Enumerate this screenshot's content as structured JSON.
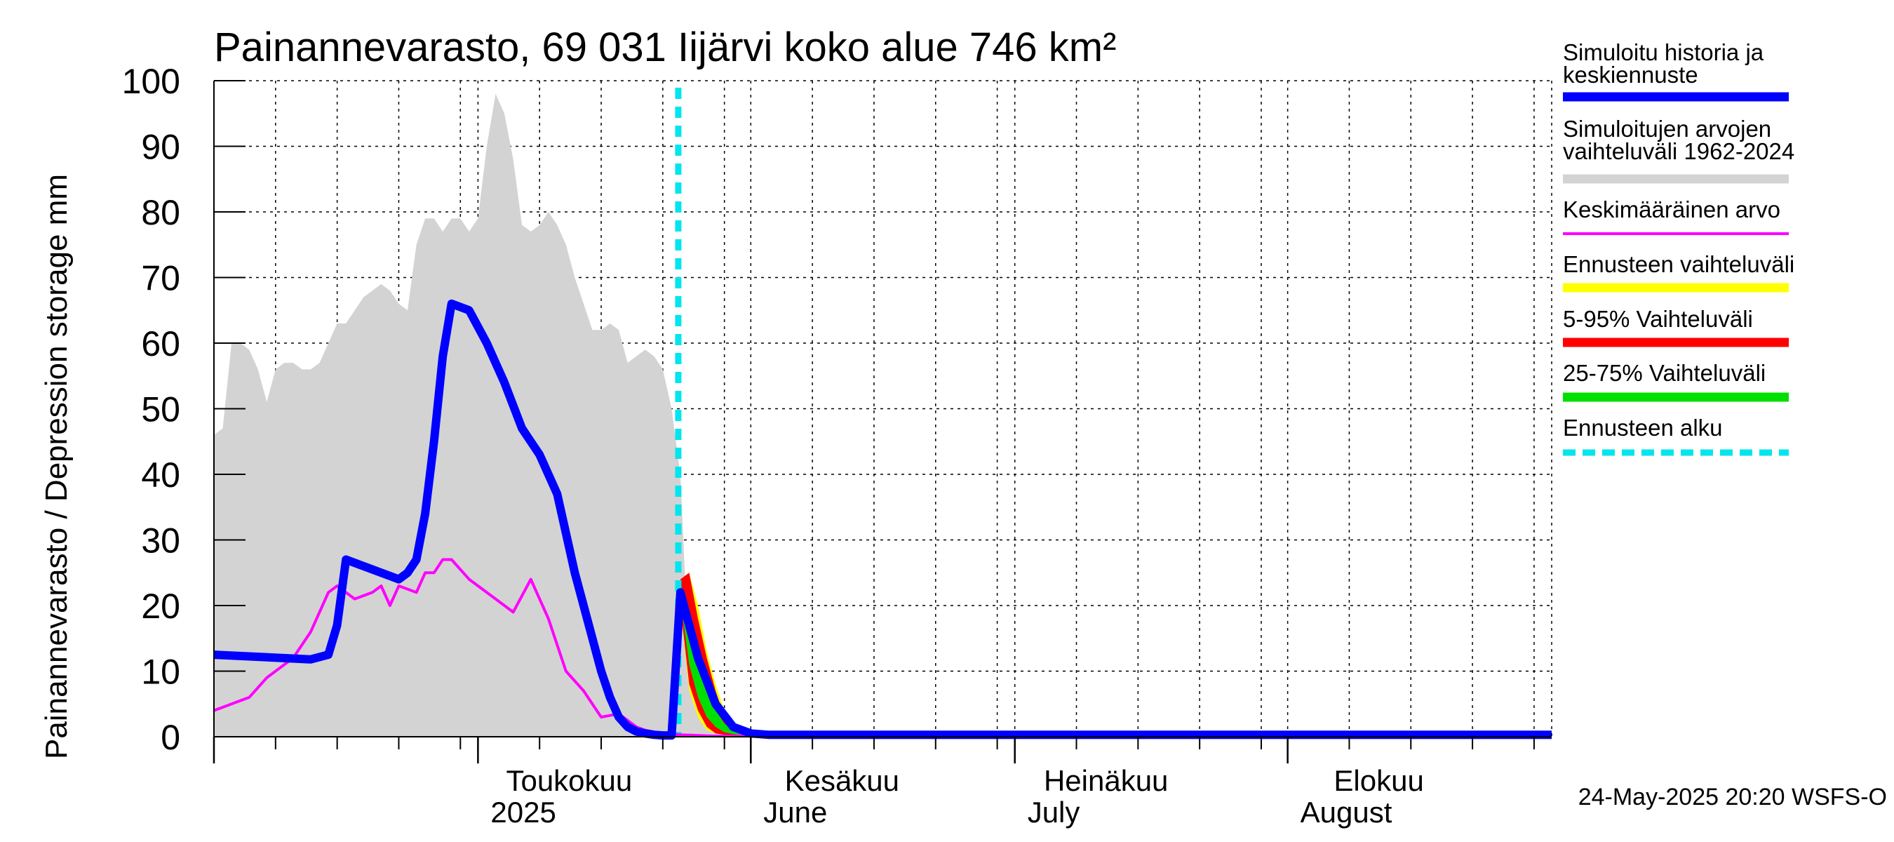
{
  "chart_data": {
    "type": "area",
    "title": "Painannevarasto, 69 031 Iijärvi koko alue 746 km²",
    "ylabel": "Painannevarasto / Depression storage    mm",
    "yunit": "mm",
    "ylim": [
      0,
      100
    ],
    "yticks": [
      0,
      10,
      20,
      30,
      40,
      50,
      60,
      70,
      80,
      90,
      100
    ],
    "xlim": [
      "2025-04-01",
      "2025-08-31"
    ],
    "grid": true,
    "x_tick_labels": [
      {
        "date": "2025-05-01",
        "line1": "Toukokuu",
        "line2": "2025"
      },
      {
        "date": "2025-06-01",
        "line1": "Kesäkuu",
        "line2": "June"
      },
      {
        "date": "2025-07-01",
        "line1": "Heinäkuu",
        "line2": "July"
      },
      {
        "date": "2025-08-01",
        "line1": "Elokuu",
        "line2": "August"
      }
    ],
    "forecast_start": "2025-05-24",
    "series": [
      {
        "name": "Simuloitujen arvojen vaihteluväli 1962-2024",
        "color": "#d3d3d3",
        "kind": "band",
        "x": [
          "2025-04-01",
          "2025-04-02",
          "2025-04-03",
          "2025-04-04",
          "2025-04-05",
          "2025-04-06",
          "2025-04-07",
          "2025-04-08",
          "2025-04-09",
          "2025-04-10",
          "2025-04-11",
          "2025-04-12",
          "2025-04-13",
          "2025-04-14",
          "2025-04-15",
          "2025-04-16",
          "2025-04-17",
          "2025-04-18",
          "2025-04-19",
          "2025-04-20",
          "2025-04-21",
          "2025-04-22",
          "2025-04-23",
          "2025-04-24",
          "2025-04-25",
          "2025-04-26",
          "2025-04-27",
          "2025-04-28",
          "2025-04-29",
          "2025-04-30",
          "2025-05-01",
          "2025-05-02",
          "2025-05-03",
          "2025-05-04",
          "2025-05-05",
          "2025-05-06",
          "2025-05-07",
          "2025-05-08",
          "2025-05-09",
          "2025-05-10",
          "2025-05-11",
          "2025-05-12",
          "2025-05-13",
          "2025-05-14",
          "2025-05-15",
          "2025-05-16",
          "2025-05-17",
          "2025-05-18",
          "2025-05-19",
          "2025-05-20",
          "2025-05-21",
          "2025-05-22",
          "2025-05-23",
          "2025-05-24",
          "2025-05-25",
          "2025-05-26",
          "2025-05-27",
          "2025-05-28",
          "2025-05-29",
          "2025-05-30",
          "2025-05-31",
          "2025-06-01",
          "2025-06-02",
          "2025-06-03",
          "2025-06-04",
          "2025-06-05",
          "2025-06-06",
          "2025-06-07",
          "2025-06-08",
          "2025-06-09",
          "2025-06-10",
          "2025-06-11",
          "2025-06-12",
          "2025-06-13",
          "2025-06-14",
          "2025-06-15",
          "2025-06-16",
          "2025-06-17",
          "2025-06-18",
          "2025-06-19",
          "2025-06-20",
          "2025-06-21"
        ],
        "upper": [
          46,
          47,
          60,
          60,
          59,
          56,
          51,
          56,
          57,
          57,
          56,
          56,
          57,
          60,
          63,
          63,
          65,
          67,
          68,
          69,
          68,
          66,
          65,
          75,
          79,
          79,
          77,
          79,
          79,
          77,
          79,
          90,
          98,
          95,
          88,
          78,
          77,
          78,
          80,
          78,
          75,
          70,
          66,
          62,
          62,
          63,
          62,
          57,
          58,
          59,
          58,
          56,
          50,
          40,
          10,
          6,
          5,
          4,
          3,
          2,
          1,
          0.5,
          0.5,
          0.5,
          0.5,
          0.5,
          0.5,
          0.5,
          0.5,
          0.5,
          0.5,
          0.5,
          0.5,
          0.5,
          0.5,
          0.5,
          0.5,
          0.5,
          0.5,
          0.5,
          0.5,
          0.5
        ],
        "lower": [
          0,
          0,
          0,
          0,
          0,
          0,
          0,
          0,
          0,
          0,
          0,
          0,
          0,
          0,
          0,
          0,
          0,
          0,
          0,
          0,
          0,
          0,
          0,
          0,
          0,
          0,
          0,
          0,
          0,
          0,
          0,
          0,
          0,
          0,
          0,
          0,
          0,
          0,
          0,
          0,
          0,
          0,
          0,
          0,
          0,
          0,
          0,
          0,
          0,
          0,
          0,
          0,
          0,
          0,
          0,
          0,
          0,
          0,
          0,
          0,
          0,
          0,
          0,
          0,
          0,
          0,
          0,
          0,
          0,
          0,
          0,
          0,
          0,
          0,
          0,
          0,
          0,
          0,
          0,
          0,
          0,
          0
        ]
      },
      {
        "name": "Ennusteen vaihteluväli",
        "color": "#ffff00",
        "kind": "band",
        "x": [
          "2025-05-24",
          "2025-05-25",
          "2025-05-26",
          "2025-05-27",
          "2025-05-28",
          "2025-05-29",
          "2025-05-30",
          "2025-05-31",
          "2025-06-01",
          "2025-06-02"
        ],
        "upper": [
          24,
          25,
          20,
          13,
          8,
          4,
          2,
          1,
          0.6,
          0.4
        ],
        "lower": [
          20,
          7,
          3,
          1,
          0.5,
          0.3,
          0.3,
          0.3,
          0.3,
          0.3
        ]
      },
      {
        "name": "5-95% Vaihteluväli",
        "color": "#ff0000",
        "kind": "band",
        "x": [
          "2025-05-24",
          "2025-05-25",
          "2025-05-26",
          "2025-05-27",
          "2025-05-28",
          "2025-05-29",
          "2025-05-30",
          "2025-05-31",
          "2025-06-01",
          "2025-06-02"
        ],
        "upper": [
          24,
          25,
          18,
          12,
          7,
          3,
          1.5,
          0.8,
          0.5,
          0.4
        ],
        "lower": [
          20,
          8,
          4,
          1.5,
          0.5,
          0.3,
          0.3,
          0.3,
          0.3,
          0.3
        ]
      },
      {
        "name": "25-75% Vaihteluväli",
        "color": "#00e000",
        "kind": "band",
        "x": [
          "2025-05-24",
          "2025-05-25",
          "2025-05-26",
          "2025-05-27",
          "2025-05-28",
          "2025-05-29",
          "2025-05-30",
          "2025-05-31",
          "2025-06-01",
          "2025-06-02"
        ],
        "upper": [
          22,
          17,
          12,
          8,
          4,
          2,
          1,
          0.6,
          0.4,
          0.3
        ],
        "lower": [
          21,
          11,
          6,
          3,
          1.5,
          0.7,
          0.4,
          0.3,
          0.3,
          0.3
        ]
      },
      {
        "name": "Keskimääräinen arvo",
        "color": "#ff00ff",
        "kind": "line",
        "x": [
          "2025-04-01",
          "2025-04-03",
          "2025-04-05",
          "2025-04-07",
          "2025-04-08",
          "2025-04-10",
          "2025-04-12",
          "2025-04-14",
          "2025-04-15",
          "2025-04-17",
          "2025-04-19",
          "2025-04-20",
          "2025-04-21",
          "2025-04-22",
          "2025-04-24",
          "2025-04-25",
          "2025-04-26",
          "2025-04-27",
          "2025-04-28",
          "2025-04-30",
          "2025-05-01",
          "2025-05-03",
          "2025-05-05",
          "2025-05-07",
          "2025-05-08",
          "2025-05-09",
          "2025-05-10",
          "2025-05-11",
          "2025-05-13",
          "2025-05-15",
          "2025-05-17",
          "2025-05-19",
          "2025-05-20",
          "2025-05-22",
          "2025-05-24",
          "2025-05-26",
          "2025-05-28",
          "2025-05-30",
          "2025-06-01",
          "2025-06-05",
          "2025-06-15",
          "2025-08-31"
        ],
        "values": [
          4,
          5,
          6,
          9,
          10,
          12,
          16,
          22,
          23,
          21,
          22,
          23,
          20,
          23,
          22,
          25,
          25,
          27,
          27,
          24,
          23,
          21,
          19,
          24,
          21,
          18,
          14,
          10,
          7,
          3,
          3.5,
          1.5,
          1,
          0.5,
          0.3,
          0.2,
          0.1,
          0.1,
          0.1,
          0.1,
          0.1,
          0.1
        ]
      },
      {
        "name": "Simuloitu historia ja keskiennuste",
        "color": "#0000ff",
        "kind": "line",
        "x": [
          "2025-04-01",
          "2025-04-12",
          "2025-04-14",
          "2025-04-15",
          "2025-04-16",
          "2025-04-18",
          "2025-04-20",
          "2025-04-21",
          "2025-04-22",
          "2025-04-23",
          "2025-04-24",
          "2025-04-25",
          "2025-04-26",
          "2025-04-27",
          "2025-04-28",
          "2025-04-30",
          "2025-05-02",
          "2025-05-04",
          "2025-05-06",
          "2025-05-08",
          "2025-05-10",
          "2025-05-12",
          "2025-05-14",
          "2025-05-15",
          "2025-05-16",
          "2025-05-17",
          "2025-05-18",
          "2025-05-19",
          "2025-05-20",
          "2025-05-21",
          "2025-05-22",
          "2025-05-23",
          "2025-05-24",
          "2025-05-26",
          "2025-05-28",
          "2025-05-30",
          "2025-06-01",
          "2025-06-03",
          "2025-06-10",
          "2025-06-20",
          "2025-08-31"
        ],
        "values": [
          12.5,
          11.8,
          12.5,
          17,
          27,
          26,
          25,
          24.5,
          24,
          25,
          27,
          34,
          45,
          58,
          66,
          65,
          60,
          54,
          47,
          43,
          37,
          25,
          15,
          10,
          6,
          3,
          1.5,
          0.8,
          0.5,
          0.3,
          0.2,
          0.2,
          22,
          12,
          5,
          1.5,
          0.5,
          0.3,
          0.3,
          0.3,
          0.3
        ]
      }
    ],
    "legend": [
      {
        "label": "Simuloitu historia ja keskiennuste",
        "color": "#0000ff",
        "style": "thick"
      },
      {
        "label": "Simuloitujen arvojen vaihteluväli 1962-2024",
        "color": "#d3d3d3",
        "style": "thick"
      },
      {
        "label": "Keskimääräinen arvo",
        "color": "#ff00ff",
        "style": "thin"
      },
      {
        "label": "Ennusteen vaihteluväli",
        "color": "#ffff00",
        "style": "thick"
      },
      {
        "label": "5-95% Vaihteluväli",
        "color": "#ff0000",
        "style": "thick"
      },
      {
        "label": "25-75% Vaihteluväli",
        "color": "#00e000",
        "style": "thick"
      },
      {
        "label": "Ennusteen alku",
        "color": "#00e5ee",
        "style": "dashed"
      }
    ],
    "legend_placement": "right"
  },
  "legend_labels": {
    "l0a": "Simuloitu historia ja",
    "l0b": "keskiennuste",
    "l1a": "Simuloitujen arvojen",
    "l1b": "vaihteluväli 1962-2024",
    "l2": "Keskimääräinen arvo",
    "l3": "Ennusteen vaihteluväli",
    "l4": "5-95% Vaihteluväli",
    "l5": "25-75% Vaihteluväli",
    "l6": "Ennusteen alku"
  },
  "footer": "24-May-2025 20:20 WSFS-O"
}
